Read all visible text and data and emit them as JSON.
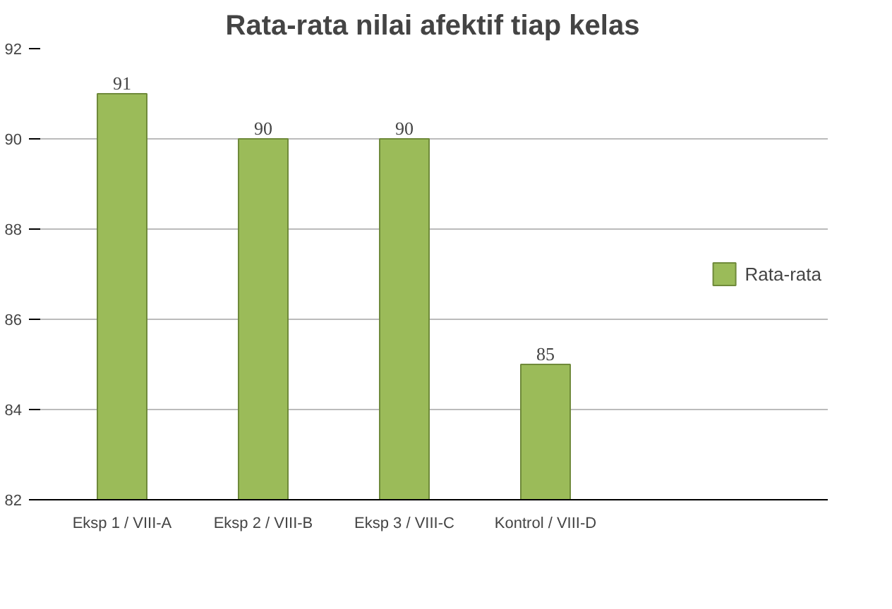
{
  "chart_data": {
    "type": "bar",
    "title": "Rata-rata nilai afektif tiap kelas",
    "categories": [
      "Eksp 1 / VIII-A",
      "Eksp 2 / VIII-B",
      "Eksp 3 / VIII-C",
      "Kontrol / VIII-D"
    ],
    "series": [
      {
        "name": "Rata-rata",
        "color": "#9bbb59",
        "values": [
          91,
          90,
          90,
          85
        ]
      }
    ],
    "ylim": [
      82,
      92
    ],
    "yticks": [
      82,
      84,
      86,
      88,
      90,
      92
    ],
    "grid": "y",
    "legend": "right",
    "data_labels": true
  }
}
